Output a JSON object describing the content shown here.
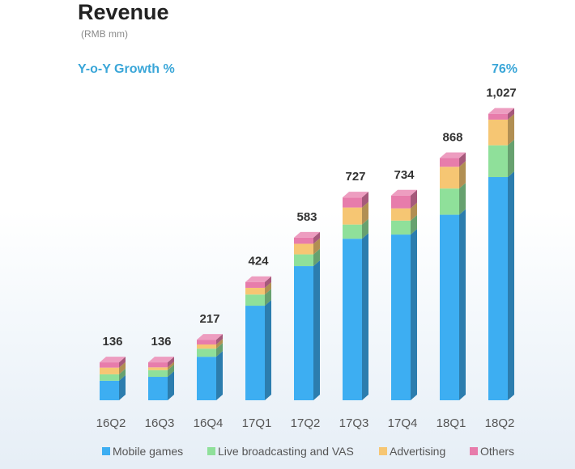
{
  "colors": {
    "mobile_games": "#3daef2",
    "live_broadcasting": "#8fe09a",
    "advertising": "#f6c673",
    "others": "#e77cab",
    "growth_text": "#3aa6d8",
    "title_text": "#222222",
    "subtitle_text": "#8a8a8a",
    "label_text": "#333333",
    "category_text": "#555555"
  },
  "chart_data": {
    "type": "bar",
    "stacked": true,
    "title": "Revenue",
    "subtitle": "(RMB mm)",
    "growth_label": "Y-o-Y Growth %",
    "growth_value": "76%",
    "categories": [
      "16Q2",
      "16Q3",
      "16Q4",
      "17Q1",
      "17Q2",
      "17Q3",
      "17Q4",
      "18Q1",
      "18Q2"
    ],
    "totals": [
      136,
      136,
      217,
      424,
      583,
      727,
      734,
      868,
      1027
    ],
    "total_labels": [
      "136",
      "136",
      "217",
      "424",
      "583",
      "727",
      "734",
      "868",
      "1,027"
    ],
    "series": [
      {
        "name": "Mobile games",
        "color_key": "mobile_games",
        "values": [
          70,
          84,
          156,
          339,
          481,
          579,
          594,
          665,
          800
        ]
      },
      {
        "name": "Live broadcasting and VAS",
        "color_key": "live_broadcasting",
        "values": [
          23,
          24,
          29,
          40,
          42,
          51,
          50,
          94,
          114
        ]
      },
      {
        "name": "Advertising",
        "color_key": "advertising",
        "values": [
          24,
          10,
          15,
          24,
          38,
          61,
          44,
          78,
          92
        ]
      },
      {
        "name": "Others",
        "color_key": "others",
        "values": [
          19,
          18,
          17,
          21,
          22,
          36,
          46,
          31,
          21
        ]
      }
    ],
    "ylim": [
      0,
      1100
    ],
    "grid": false,
    "legend_position": "bottom"
  }
}
